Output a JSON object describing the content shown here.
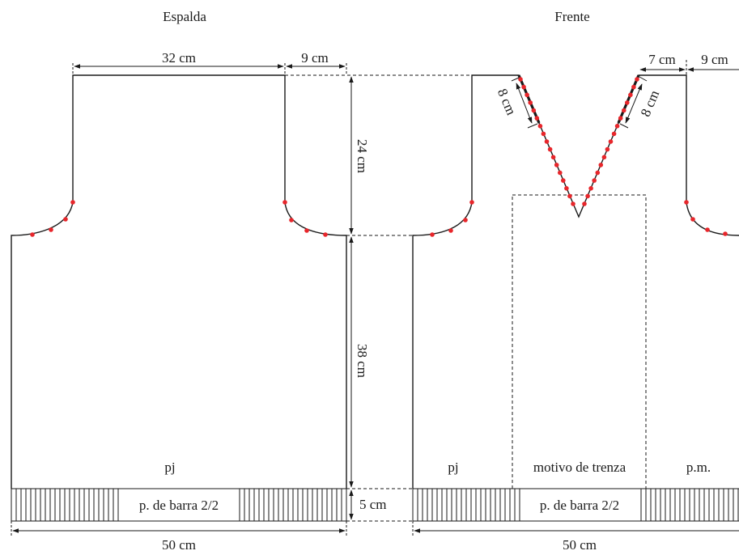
{
  "titles": {
    "back": "Espalda",
    "front": "Frente"
  },
  "back": {
    "shoulder_width": "32 cm",
    "shoulder_side": "9 cm",
    "armhole_height": "24 cm",
    "body_height": "38 cm",
    "rib_height": "5 cm",
    "width": "50 cm",
    "stitch_label": "pj",
    "rib_label": "p. de barra 2/2"
  },
  "front": {
    "neck_offset": "7 cm",
    "shoulder_side": "9 cm",
    "neck_edge_left": "8 cm",
    "neck_edge_right": "8 cm",
    "stitch_left": "pj",
    "cable_label": "motivo de trenza",
    "stitch_right": "p.m.",
    "rib_label": "p. de barra 2/2",
    "width": "50 cm"
  },
  "colors": {
    "line": "#1a1a1a",
    "dot": "#e8262b",
    "background": "#ffffff"
  }
}
